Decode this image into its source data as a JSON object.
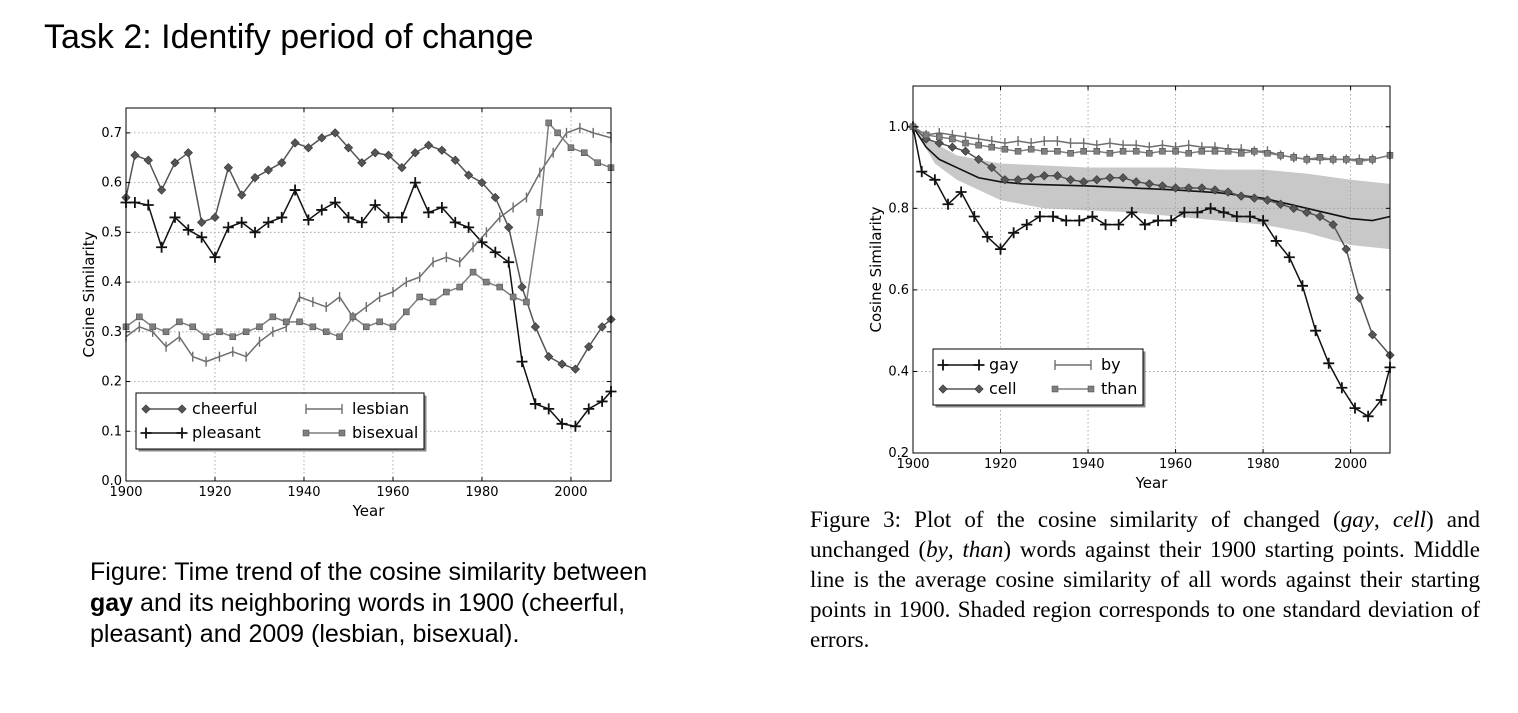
{
  "page": {
    "title": "Task 2: Identify period of change"
  },
  "captions": {
    "left": {
      "t1": "Figure: Time trend of the cosine similarity between ",
      "bold": "gay",
      "t2": " and its neighboring words in 1900 (cheerful, pleasant) and 2009 (lesbian, bisexual)."
    },
    "right": {
      "p1": "Figure 3: Plot of the cosine similarity of changed (",
      "i1": "gay",
      "p2": ", ",
      "i2": "cell",
      "p3": ") and unchanged (",
      "i3": "by",
      "p4": ", ",
      "i4": "than",
      "p5": ") words against their 1900 starting points.  Middle line is the average cosine similarity of all words against their starting points in 1900.  Shaded region corresponds to one standard deviation of errors."
    }
  },
  "chart_data": [
    {
      "type": "line",
      "title": "",
      "xlabel": "Year",
      "ylabel": "Cosine Similarity",
      "xlim": [
        1900,
        2009
      ],
      "ylim": [
        0.0,
        0.75
      ],
      "xticks": [
        1900,
        1920,
        1940,
        1960,
        1980,
        2000
      ],
      "yticks": [
        0.0,
        0.1,
        0.2,
        0.3,
        0.4,
        0.5,
        0.6,
        0.7
      ],
      "xtick_labels": [
        "1900",
        "1920",
        "1940",
        "1960",
        "1980",
        "2000"
      ],
      "ytick_labels": [
        "0.0",
        "0.1",
        "0.2",
        "0.3",
        "0.4",
        "0.5",
        "0.6",
        "0.7"
      ],
      "grid": true,
      "legend_position": "lower-left",
      "series": [
        {
          "name": "cheerful",
          "color": "#555555",
          "marker": "diamond",
          "x": [
            1900,
            1902,
            1905,
            1908,
            1911,
            1914,
            1917,
            1920,
            1923,
            1926,
            1929,
            1932,
            1935,
            1938,
            1941,
            1944,
            1947,
            1950,
            1953,
            1956,
            1959,
            1962,
            1965,
            1968,
            1971,
            1974,
            1977,
            1980,
            1983,
            1986,
            1989,
            1992,
            1995,
            1998,
            2001,
            2004,
            2007,
            2009
          ],
          "y": [
            0.57,
            0.655,
            0.645,
            0.585,
            0.64,
            0.66,
            0.52,
            0.53,
            0.63,
            0.575,
            0.61,
            0.625,
            0.64,
            0.68,
            0.67,
            0.69,
            0.7,
            0.67,
            0.64,
            0.66,
            0.655,
            0.63,
            0.66,
            0.675,
            0.665,
            0.645,
            0.615,
            0.6,
            0.57,
            0.51,
            0.39,
            0.31,
            0.25,
            0.235,
            0.225,
            0.27,
            0.31,
            0.325
          ]
        },
        {
          "name": "pleasant",
          "color": "#111111",
          "marker": "plus",
          "x": [
            1900,
            1902,
            1905,
            1908,
            1911,
            1914,
            1917,
            1920,
            1923,
            1926,
            1929,
            1932,
            1935,
            1938,
            1941,
            1944,
            1947,
            1950,
            1953,
            1956,
            1959,
            1962,
            1965,
            1968,
            1971,
            1974,
            1977,
            1980,
            1983,
            1986,
            1989,
            1992,
            1995,
            1998,
            2001,
            2004,
            2007,
            2009
          ],
          "y": [
            0.56,
            0.56,
            0.555,
            0.47,
            0.53,
            0.505,
            0.49,
            0.45,
            0.51,
            0.52,
            0.5,
            0.52,
            0.53,
            0.585,
            0.525,
            0.545,
            0.56,
            0.53,
            0.52,
            0.555,
            0.53,
            0.53,
            0.6,
            0.54,
            0.55,
            0.52,
            0.51,
            0.48,
            0.46,
            0.44,
            0.24,
            0.155,
            0.145,
            0.115,
            0.11,
            0.145,
            0.16,
            0.18
          ]
        },
        {
          "name": "lesbian",
          "color": "#6e6e6e",
          "marker": "vtick",
          "x": [
            1900,
            1903,
            1906,
            1909,
            1912,
            1915,
            1918,
            1921,
            1924,
            1927,
            1930,
            1933,
            1936,
            1939,
            1942,
            1945,
            1948,
            1951,
            1954,
            1957,
            1960,
            1963,
            1966,
            1969,
            1972,
            1975,
            1978,
            1981,
            1984,
            1987,
            1990,
            1993,
            1996,
            1999,
            2002,
            2005,
            2009
          ],
          "y": [
            0.29,
            0.31,
            0.3,
            0.27,
            0.29,
            0.25,
            0.24,
            0.25,
            0.26,
            0.25,
            0.28,
            0.3,
            0.31,
            0.37,
            0.36,
            0.35,
            0.37,
            0.33,
            0.35,
            0.37,
            0.38,
            0.4,
            0.41,
            0.44,
            0.45,
            0.44,
            0.47,
            0.5,
            0.53,
            0.55,
            0.57,
            0.62,
            0.66,
            0.7,
            0.71,
            0.7,
            0.69
          ]
        },
        {
          "name": "bisexual",
          "color": "#7f7f7f",
          "marker": "square",
          "x": [
            1900,
            1903,
            1906,
            1909,
            1912,
            1915,
            1918,
            1921,
            1924,
            1927,
            1930,
            1933,
            1936,
            1939,
            1942,
            1945,
            1948,
            1951,
            1954,
            1957,
            1960,
            1963,
            1966,
            1969,
            1972,
            1975,
            1978,
            1981,
            1984,
            1987,
            1990,
            1993,
            1995,
            1997,
            2000,
            2003,
            2006,
            2009
          ],
          "y": [
            0.31,
            0.33,
            0.31,
            0.3,
            0.32,
            0.31,
            0.29,
            0.3,
            0.29,
            0.3,
            0.31,
            0.33,
            0.32,
            0.32,
            0.31,
            0.3,
            0.29,
            0.33,
            0.31,
            0.32,
            0.31,
            0.34,
            0.37,
            0.36,
            0.38,
            0.39,
            0.42,
            0.4,
            0.39,
            0.37,
            0.36,
            0.54,
            0.72,
            0.7,
            0.67,
            0.66,
            0.64,
            0.63
          ]
        }
      ]
    },
    {
      "type": "line",
      "title": "",
      "xlabel": "Year",
      "ylabel": "Cosine Similarity",
      "xlim": [
        1900,
        2009
      ],
      "ylim": [
        0.2,
        1.1
      ],
      "xticks": [
        1900,
        1920,
        1940,
        1960,
        1980,
        2000
      ],
      "yticks": [
        0.2,
        0.4,
        0.6,
        0.8,
        1.0
      ],
      "xtick_labels": [
        "1900",
        "1920",
        "1940",
        "1960",
        "1980",
        "2000"
      ],
      "ytick_labels": [
        "0.2",
        "0.4",
        "0.6",
        "0.8",
        "1.0"
      ],
      "grid": true,
      "legend_position": "lower-left",
      "band": {
        "color": "#c8c8c8",
        "x": [
          1900,
          1905,
          1910,
          1920,
          1930,
          1940,
          1950,
          1960,
          1970,
          1980,
          1990,
          2000,
          2009
        ],
        "upper": [
          1.0,
          0.96,
          0.93,
          0.91,
          0.905,
          0.9,
          0.9,
          0.9,
          0.895,
          0.895,
          0.885,
          0.87,
          0.86
        ],
        "lower": [
          1.0,
          0.91,
          0.87,
          0.82,
          0.8,
          0.795,
          0.79,
          0.78,
          0.77,
          0.76,
          0.74,
          0.71,
          0.7
        ]
      },
      "mean": {
        "color": "#111111",
        "x": [
          1900,
          1903,
          1906,
          1910,
          1915,
          1920,
          1925,
          1930,
          1940,
          1950,
          1960,
          1970,
          1980,
          1990,
          2000,
          2005,
          2009
        ],
        "y": [
          1.0,
          0.95,
          0.92,
          0.9,
          0.875,
          0.865,
          0.86,
          0.858,
          0.855,
          0.85,
          0.845,
          0.838,
          0.825,
          0.8,
          0.775,
          0.77,
          0.78
        ]
      },
      "series": [
        {
          "name": "gay",
          "color": "#111111",
          "marker": "plus",
          "x": [
            1900,
            1902,
            1905,
            1908,
            1911,
            1914,
            1917,
            1920,
            1923,
            1926,
            1929,
            1932,
            1935,
            1938,
            1941,
            1944,
            1947,
            1950,
            1953,
            1956,
            1959,
            1962,
            1965,
            1968,
            1971,
            1974,
            1977,
            1980,
            1983,
            1986,
            1989,
            1992,
            1995,
            1998,
            2001,
            2004,
            2007,
            2009
          ],
          "y": [
            1.0,
            0.89,
            0.87,
            0.81,
            0.84,
            0.78,
            0.73,
            0.7,
            0.74,
            0.76,
            0.78,
            0.78,
            0.77,
            0.77,
            0.78,
            0.76,
            0.76,
            0.79,
            0.76,
            0.77,
            0.77,
            0.79,
            0.79,
            0.8,
            0.79,
            0.78,
            0.78,
            0.77,
            0.72,
            0.68,
            0.61,
            0.5,
            0.42,
            0.36,
            0.31,
            0.29,
            0.33,
            0.41
          ]
        },
        {
          "name": "cell",
          "color": "#555555",
          "marker": "diamond",
          "x": [
            1900,
            1903,
            1906,
            1909,
            1912,
            1915,
            1918,
            1921,
            1924,
            1927,
            1930,
            1933,
            1936,
            1939,
            1942,
            1945,
            1948,
            1951,
            1954,
            1957,
            1960,
            1963,
            1966,
            1969,
            1972,
            1975,
            1978,
            1981,
            1984,
            1987,
            1990,
            1993,
            1996,
            1999,
            2002,
            2005,
            2009
          ],
          "y": [
            1.0,
            0.97,
            0.96,
            0.95,
            0.94,
            0.92,
            0.9,
            0.87,
            0.87,
            0.875,
            0.88,
            0.88,
            0.87,
            0.865,
            0.87,
            0.875,
            0.875,
            0.865,
            0.86,
            0.855,
            0.85,
            0.85,
            0.85,
            0.845,
            0.84,
            0.83,
            0.825,
            0.82,
            0.81,
            0.8,
            0.79,
            0.78,
            0.76,
            0.7,
            0.58,
            0.49,
            0.44
          ]
        },
        {
          "name": "by",
          "color": "#6e6e6e",
          "marker": "vtick",
          "x": [
            1900,
            1903,
            1906,
            1909,
            1912,
            1915,
            1918,
            1921,
            1924,
            1927,
            1930,
            1933,
            1936,
            1939,
            1942,
            1945,
            1948,
            1951,
            1954,
            1957,
            1960,
            1963,
            1966,
            1969,
            1972,
            1975,
            1978,
            1981,
            1984,
            1987,
            1990,
            1993,
            1996,
            1999,
            2002,
            2005,
            2009
          ],
          "y": [
            1.0,
            0.98,
            0.985,
            0.98,
            0.975,
            0.97,
            0.965,
            0.96,
            0.965,
            0.96,
            0.965,
            0.965,
            0.96,
            0.96,
            0.955,
            0.96,
            0.955,
            0.955,
            0.95,
            0.955,
            0.95,
            0.955,
            0.95,
            0.95,
            0.945,
            0.945,
            0.94,
            0.94,
            0.93,
            0.925,
            0.92,
            0.92,
            0.92,
            0.92,
            0.92,
            0.92,
            0.93
          ]
        },
        {
          "name": "than",
          "color": "#7f7f7f",
          "marker": "square",
          "x": [
            1900,
            1903,
            1906,
            1909,
            1912,
            1915,
            1918,
            1921,
            1924,
            1927,
            1930,
            1933,
            1936,
            1939,
            1942,
            1945,
            1948,
            1951,
            1954,
            1957,
            1960,
            1963,
            1966,
            1969,
            1972,
            1975,
            1978,
            1981,
            1984,
            1987,
            1990,
            1993,
            1996,
            1999,
            2002,
            2005,
            2009
          ],
          "y": [
            1.0,
            0.98,
            0.975,
            0.97,
            0.96,
            0.955,
            0.95,
            0.945,
            0.94,
            0.945,
            0.94,
            0.94,
            0.935,
            0.94,
            0.94,
            0.935,
            0.94,
            0.94,
            0.935,
            0.94,
            0.94,
            0.935,
            0.94,
            0.94,
            0.94,
            0.935,
            0.94,
            0.935,
            0.93,
            0.925,
            0.92,
            0.925,
            0.92,
            0.92,
            0.915,
            0.92,
            0.93
          ]
        }
      ]
    }
  ]
}
